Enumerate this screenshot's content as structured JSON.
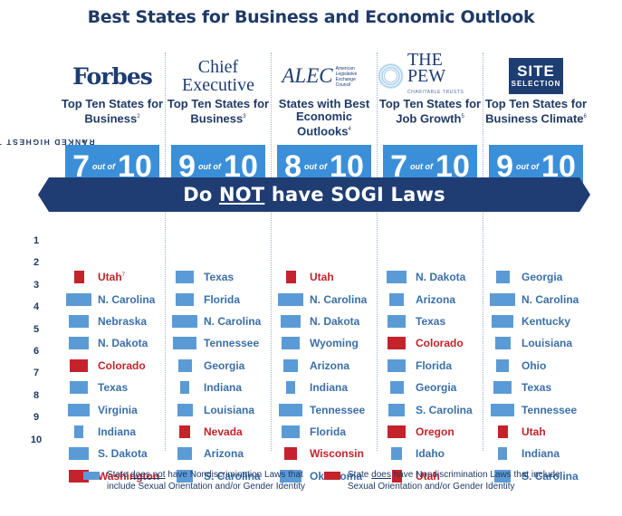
{
  "title": "Best States for Business and Economic Outlook",
  "side_label": "RANKED HIGHEST TO LOWEST",
  "side_arrow": "»",
  "banner": {
    "pre": "Do ",
    "emph": "NOT",
    "post": " have SOGI Laws"
  },
  "ranks": [
    "1",
    "2",
    "3",
    "4",
    "5",
    "6",
    "7",
    "8",
    "9",
    "10"
  ],
  "colors": {
    "blue": "#5b9bd5",
    "red": "#c4232b",
    "navy": "#1f3d73",
    "score_blue": "#3b8fd8"
  },
  "columns": [
    {
      "logo_text": "Forbes",
      "heading": "Top Ten States for Business",
      "footnote": "2",
      "score": {
        "value": "7",
        "of": "out of",
        "total": "10"
      },
      "states": [
        {
          "name": "Utah",
          "note": "7",
          "sogi": true
        },
        {
          "name": "N. Carolina",
          "sogi": false
        },
        {
          "name": "Nebraska",
          "sogi": false
        },
        {
          "name": "N. Dakota",
          "sogi": false
        },
        {
          "name": "Colorado",
          "sogi": true
        },
        {
          "name": "Texas",
          "sogi": false
        },
        {
          "name": "Virginia",
          "sogi": false
        },
        {
          "name": "Indiana",
          "sogi": false
        },
        {
          "name": "S. Dakota",
          "sogi": false
        },
        {
          "name": "Washington",
          "sogi": true
        }
      ]
    },
    {
      "logo_text": "Chief Executive",
      "heading": "Top Ten States for Business",
      "footnote": "3",
      "score": {
        "value": "9",
        "of": "out of",
        "total": "10"
      },
      "states": [
        {
          "name": "Texas",
          "sogi": false
        },
        {
          "name": "Florida",
          "sogi": false
        },
        {
          "name": "N. Carolina",
          "sogi": false
        },
        {
          "name": "Tennessee",
          "sogi": false
        },
        {
          "name": "Georgia",
          "sogi": false
        },
        {
          "name": "Indiana",
          "sogi": false
        },
        {
          "name": "Louisiana",
          "sogi": false
        },
        {
          "name": "Nevada",
          "sogi": true
        },
        {
          "name": "Arizona",
          "sogi": false
        },
        {
          "name": "S. Carolina",
          "sogi": false
        }
      ]
    },
    {
      "logo_text": "ALEC",
      "logo_sub": "American Legislative Exchange Council",
      "heading": "States with Best Economic Outlooks",
      "footnote": "4",
      "score": {
        "value": "8",
        "of": "out of",
        "total": "10"
      },
      "states": [
        {
          "name": "Utah",
          "sogi": true
        },
        {
          "name": "N. Carolina",
          "sogi": false
        },
        {
          "name": "N. Dakota",
          "sogi": false
        },
        {
          "name": "Wyoming",
          "sogi": false
        },
        {
          "name": "Arizona",
          "sogi": false
        },
        {
          "name": "Indiana",
          "sogi": false
        },
        {
          "name": "Tennessee",
          "sogi": false
        },
        {
          "name": "Florida",
          "sogi": false
        },
        {
          "name": "Wisconsin",
          "sogi": true
        },
        {
          "name": "Oklahoma",
          "sogi": false
        }
      ]
    },
    {
      "logo_text": "THE PEW",
      "logo_sub": "CHARITABLE TRUSTS",
      "heading": "Top Ten States for Job Growth",
      "footnote": "5",
      "score": {
        "value": "7",
        "of": "out of",
        "total": "10"
      },
      "states": [
        {
          "name": "N. Dakota",
          "sogi": false
        },
        {
          "name": "Arizona",
          "sogi": false
        },
        {
          "name": "Texas",
          "sogi": false
        },
        {
          "name": "Colorado",
          "sogi": true
        },
        {
          "name": "Florida",
          "sogi": false
        },
        {
          "name": "Georgia",
          "sogi": false
        },
        {
          "name": "S. Carolina",
          "sogi": false
        },
        {
          "name": "Oregon",
          "sogi": true
        },
        {
          "name": "Idaho",
          "sogi": false
        },
        {
          "name": "Utah",
          "sogi": true
        }
      ]
    },
    {
      "logo_text": "SITE",
      "logo_sub": "SELECTION",
      "heading": "Top Ten States for Business Climate",
      "footnote": "6",
      "score": {
        "value": "9",
        "of": "out of",
        "total": "10"
      },
      "states": [
        {
          "name": "Georgia",
          "sogi": false
        },
        {
          "name": "N. Carolina",
          "sogi": false
        },
        {
          "name": "Kentucky",
          "sogi": false
        },
        {
          "name": "Louisiana",
          "sogi": false
        },
        {
          "name": "Ohio",
          "sogi": false
        },
        {
          "name": "Texas",
          "sogi": false
        },
        {
          "name": "Tennessee",
          "sogi": false
        },
        {
          "name": "Utah",
          "sogi": true
        },
        {
          "name": "Indiana",
          "sogi": false
        },
        {
          "name": "S. Carolina",
          "sogi": false
        }
      ]
    }
  ],
  "legend": [
    {
      "color": "#5b9bd5",
      "pre": "State ",
      "emph": "does not",
      "post": " have Nondiscrimination Laws that include Sexual Orientation and/or Gender Identity"
    },
    {
      "color": "#c4232b",
      "pre": "State ",
      "emph": "does",
      "post": " have Nondiscrimination Laws that include Sexual Orientation and/or Gender Identity"
    }
  ]
}
